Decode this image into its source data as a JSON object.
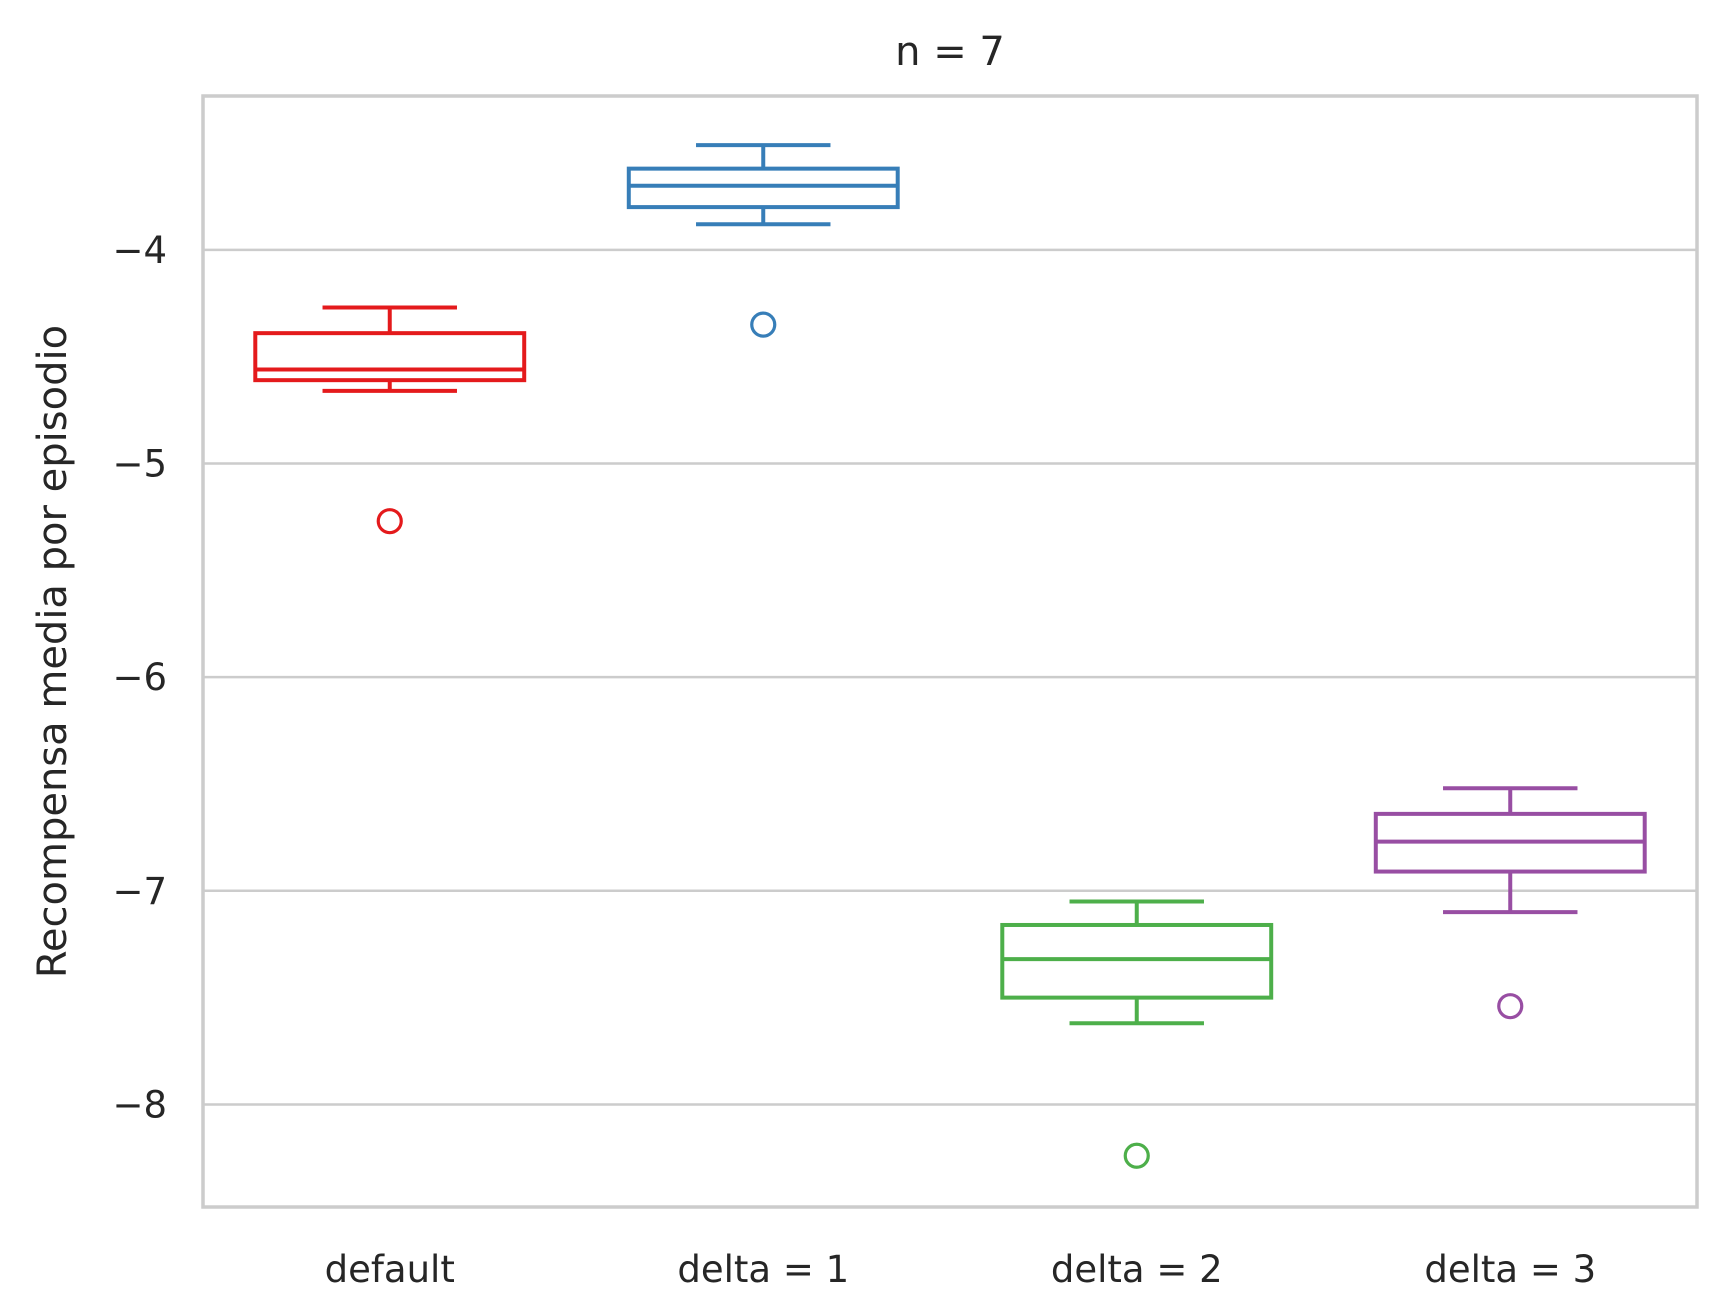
{
  "chart_data": {
    "type": "box",
    "title": "n = 7",
    "xlabel": "",
    "ylabel": "Recompensa media por episodio",
    "ylim": [
      -8.48,
      -3.28
    ],
    "yticks": [
      -8,
      -7,
      -6,
      -5,
      -4
    ],
    "ytick_labels": [
      "−8",
      "−7",
      "−6",
      "−5",
      "−4"
    ],
    "grid": true,
    "categories": [
      "default",
      "delta = 1",
      "delta = 2",
      "delta = 3"
    ],
    "boxes": [
      {
        "category": "default",
        "color": "#e41a1c",
        "whisker_low": -4.66,
        "q1": -4.61,
        "median": -4.56,
        "q3": -4.39,
        "whisker_high": -4.27,
        "outliers": [
          -5.27
        ]
      },
      {
        "category": "delta = 1",
        "color": "#377eb8",
        "whisker_low": -3.88,
        "q1": -3.8,
        "median": -3.7,
        "q3": -3.62,
        "whisker_high": -3.51,
        "outliers": [
          -4.35
        ]
      },
      {
        "category": "delta = 2",
        "color": "#4daf4a",
        "whisker_low": -7.62,
        "q1": -7.5,
        "median": -7.32,
        "q3": -7.16,
        "whisker_high": -7.05,
        "outliers": [
          -8.24
        ]
      },
      {
        "category": "delta = 3",
        "color": "#984ea3",
        "whisker_low": -7.1,
        "q1": -6.91,
        "median": -6.77,
        "q3": -6.64,
        "whisker_high": -6.52,
        "outliers": [
          -7.54
        ]
      }
    ]
  }
}
